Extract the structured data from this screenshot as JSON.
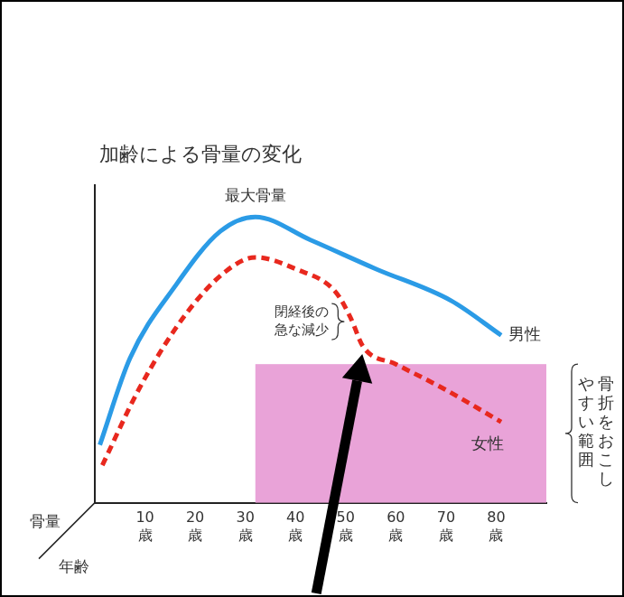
{
  "chart_data": {
    "type": "line",
    "title": "加齢による骨量の変化",
    "x_label": "年齢",
    "y_label": "骨量",
    "xlim": [
      0,
      90
    ],
    "xticks": [
      {
        "value": 10,
        "label": "10歳"
      },
      {
        "value": 20,
        "label": "20歳"
      },
      {
        "value": 30,
        "label": "30歳"
      },
      {
        "value": 40,
        "label": "40歳"
      },
      {
        "value": 50,
        "label": "50歳"
      },
      {
        "value": 60,
        "label": "60歳"
      },
      {
        "value": 70,
        "label": "70歳"
      },
      {
        "value": 80,
        "label": "80歳"
      }
    ],
    "ylim": [
      0,
      110
    ],
    "yticks": [],
    "tick_labels": "x",
    "grid": false,
    "series": [
      {
        "name": "男性",
        "color": "#2b9be6",
        "line_style": "solid",
        "marker": "none",
        "x": [
          1,
          7,
          16,
          25,
          32,
          43,
          56,
          71,
          81
        ],
        "values": [
          20,
          50,
          75,
          94,
          99,
          91,
          81,
          70,
          58
        ]
      },
      {
        "name": "女性",
        "color": "#e8281e",
        "line_style": "dashed",
        "marker": "none",
        "x": [
          1.5,
          9,
          18,
          26,
          32,
          40,
          48,
          51,
          53.5,
          60,
          69,
          81
        ],
        "values": [
          13,
          40,
          65,
          80,
          85,
          81,
          73,
          64,
          54,
          48,
          40,
          28
        ]
      }
    ],
    "annotations": [
      {
        "text": "最大骨量",
        "series": "男性"
      },
      {
        "text": "閉経後の急な減少",
        "series": "女性"
      }
    ],
    "shaded_region": {
      "label": "骨折をおこしやすい範囲",
      "x": [
        32,
        90
      ],
      "y": [
        0,
        48
      ],
      "color": "#e9a3d8"
    }
  }
}
